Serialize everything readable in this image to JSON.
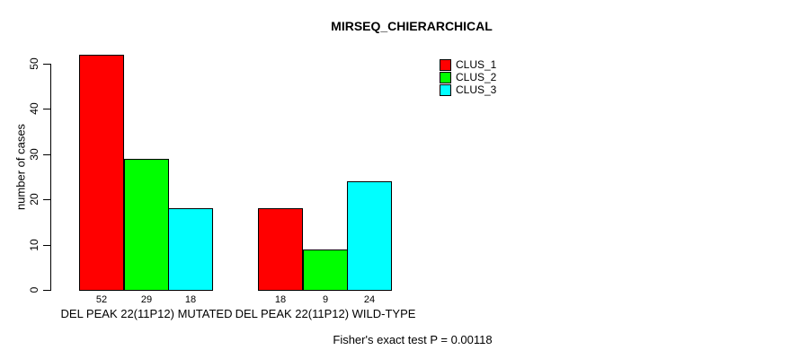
{
  "title": "MIRSEQ_CHIERARCHICAL",
  "annotation": "Fisher's exact test P = 0.00118",
  "colors": {
    "clus_1": "#FF0000",
    "clus_2": "#00FF00",
    "clus_3": "#00FFFF",
    "axis": "#000000",
    "background": "#FFFFFF"
  },
  "legend": {
    "items": [
      {
        "label": "CLUS_1",
        "color": "#FF0000"
      },
      {
        "label": "CLUS_2",
        "color": "#00FF00"
      },
      {
        "label": "CLUS_3",
        "color": "#00FFFF"
      }
    ]
  },
  "chart_data": {
    "type": "bar",
    "title": "MIRSEQ_CHIERARCHICAL",
    "ylabel": "number of cases",
    "xlabel": "",
    "categories": [
      "DEL PEAK 22(11P12) MUTATED",
      "DEL PEAK 22(11P12) WILD-TYPE"
    ],
    "series": [
      {
        "name": "CLUS_1",
        "color": "#FF0000",
        "values": [
          52,
          18
        ]
      },
      {
        "name": "CLUS_2",
        "color": "#00FF00",
        "values": [
          29,
          9
        ]
      },
      {
        "name": "CLUS_3",
        "color": "#00FFFF",
        "values": [
          18,
          24
        ]
      }
    ],
    "value_labels": [
      [
        52,
        29,
        18
      ],
      [
        18,
        9,
        24
      ]
    ],
    "yticks": [
      0,
      10,
      20,
      30,
      40,
      50
    ],
    "ylim": [
      0,
      52
    ],
    "grid": false,
    "legend_position": "top-right",
    "annotation": "Fisher's exact test P = 0.00118"
  }
}
